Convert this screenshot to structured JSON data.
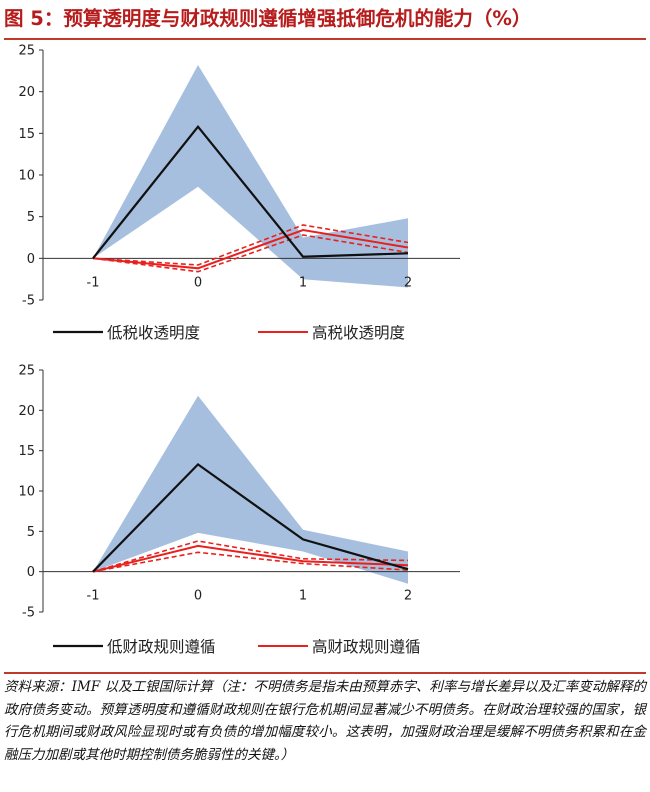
{
  "title": "图 5：预算透明度与财政规则遵循增强抵御危机的能力（%）",
  "colors": {
    "band": "#a7bfdf",
    "low_line": "#111111",
    "high_line": "#e8201e",
    "axis": "#333333",
    "title": "#b71c1c"
  },
  "chart_data": [
    {
      "type": "line",
      "x": [
        -1,
        0,
        1,
        2
      ],
      "x_ticks": [
        "-1",
        "0",
        "1",
        "2"
      ],
      "y_ticks": [
        "25",
        "20",
        "15",
        "10",
        "5",
        "0",
        "-5"
      ],
      "ylim": [
        -5,
        25
      ],
      "series": [
        {
          "name": "低税收透明度",
          "values": [
            0,
            15.8,
            0.2,
            0.6
          ],
          "band_upper": [
            0,
            23.2,
            2.5,
            4.8
          ],
          "band_lower": [
            0,
            8.6,
            -2.5,
            -3.5
          ]
        },
        {
          "name": "高税收透明度",
          "values": [
            0,
            -1.2,
            3.4,
            1.3
          ],
          "band_upper": [
            0,
            -0.8,
            4.0,
            1.9
          ],
          "band_lower": [
            0,
            -1.6,
            2.8,
            0.7
          ]
        }
      ],
      "legend": [
        "低税收透明度",
        "高税收透明度"
      ]
    },
    {
      "type": "line",
      "x": [
        -1,
        0,
        1,
        2
      ],
      "x_ticks": [
        "-1",
        "0",
        "1",
        "2"
      ],
      "y_ticks": [
        "25",
        "20",
        "15",
        "10",
        "5",
        "0",
        "-5"
      ],
      "ylim": [
        -5,
        25
      ],
      "series": [
        {
          "name": "低财政规则遵循",
          "values": [
            0,
            13.3,
            4.0,
            0.3
          ],
          "band_upper": [
            0,
            21.8,
            5.2,
            2.5
          ],
          "band_lower": [
            0,
            4.8,
            2.5,
            -1.5
          ]
        },
        {
          "name": "高财政规则遵循",
          "values": [
            0,
            3.2,
            1.3,
            0.8
          ],
          "band_upper": [
            0,
            3.8,
            1.6,
            1.4
          ],
          "band_lower": [
            0,
            2.4,
            1.0,
            0.2
          ]
        }
      ],
      "legend": [
        "低财政规则遵循",
        "高财政规则遵循"
      ]
    }
  ],
  "source": "资料来源：IMF 以及工银国际计算（注：不明债务是指未由预算赤字、利率与增长差异以及汇率变动解释的政府债务变动。预算透明度和遵循财政规则在银行危机期间显著减少不明债务。在财政治理较强的国家，银行危机期间或财政风险显现时或有负债的增加幅度较小。这表明，加强财政治理是缓解不明债务积累和在金融压力加剧或其他时期控制债务脆弱性的关键。）"
}
